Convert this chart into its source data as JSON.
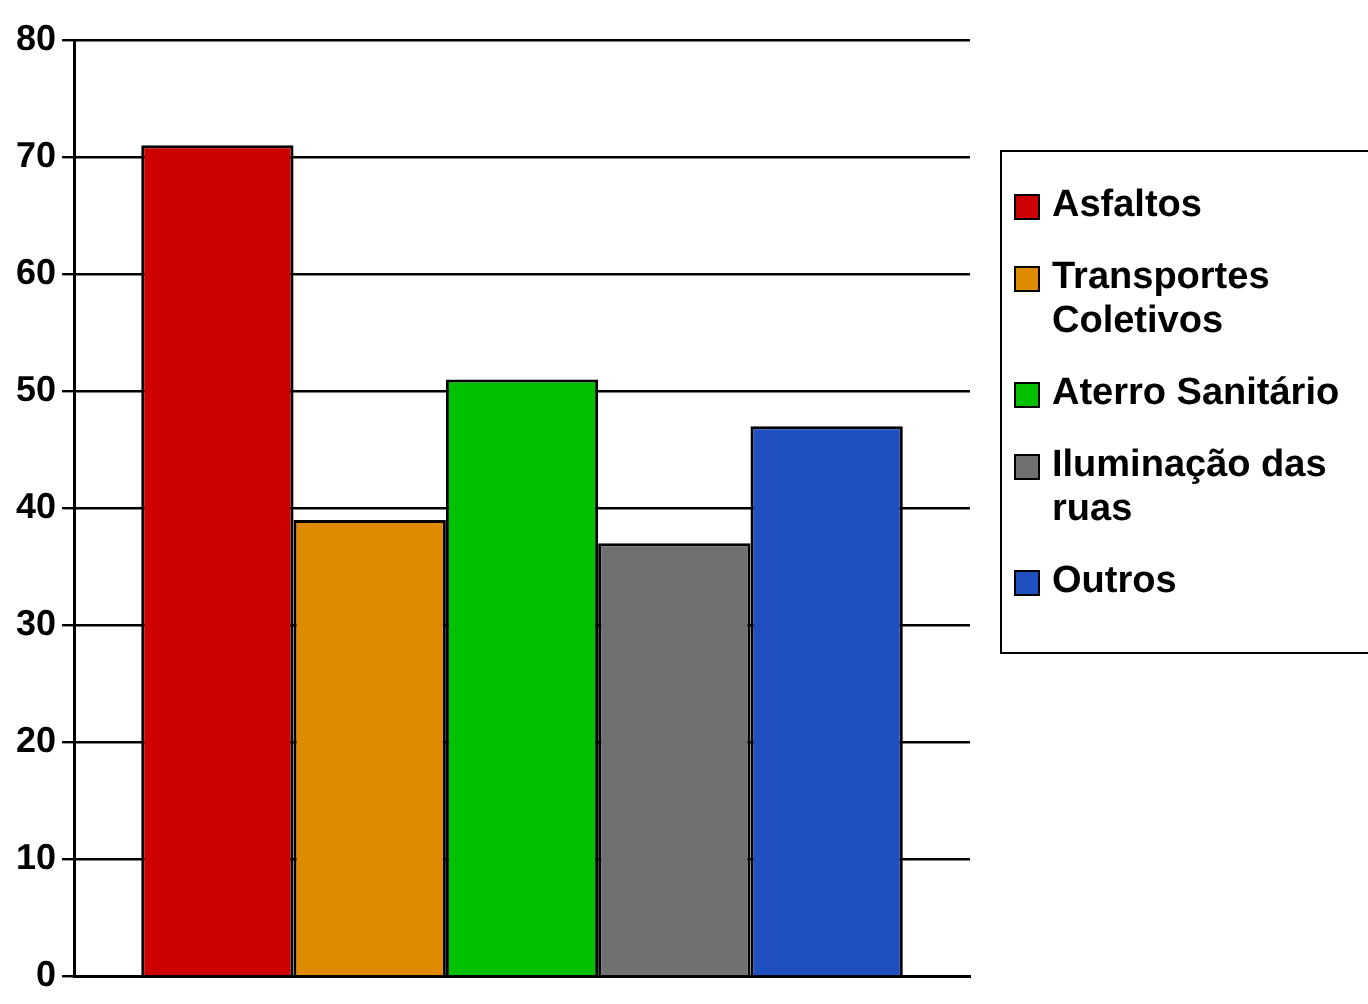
{
  "chart_data": {
    "type": "bar",
    "categories": [
      null
    ],
    "series": [
      {
        "name": "Asfaltos",
        "color": "#cc0000",
        "values": [
          71
        ]
      },
      {
        "name": "Transportes Coletivos",
        "color": "#e08a00",
        "values": [
          39
        ]
      },
      {
        "name": "Aterro Sanitário",
        "color": "#00c000",
        "values": [
          51
        ]
      },
      {
        "name": "Iluminação das ruas",
        "color": "#707070",
        "values": [
          37
        ]
      },
      {
        "name": "Outros",
        "color": "#2050c0",
        "values": [
          47
        ]
      }
    ],
    "ylim": [
      0,
      80
    ],
    "yticks": [
      0,
      10,
      20,
      30,
      40,
      50,
      60,
      70,
      80
    ],
    "grid": "y",
    "legend": "right"
  }
}
